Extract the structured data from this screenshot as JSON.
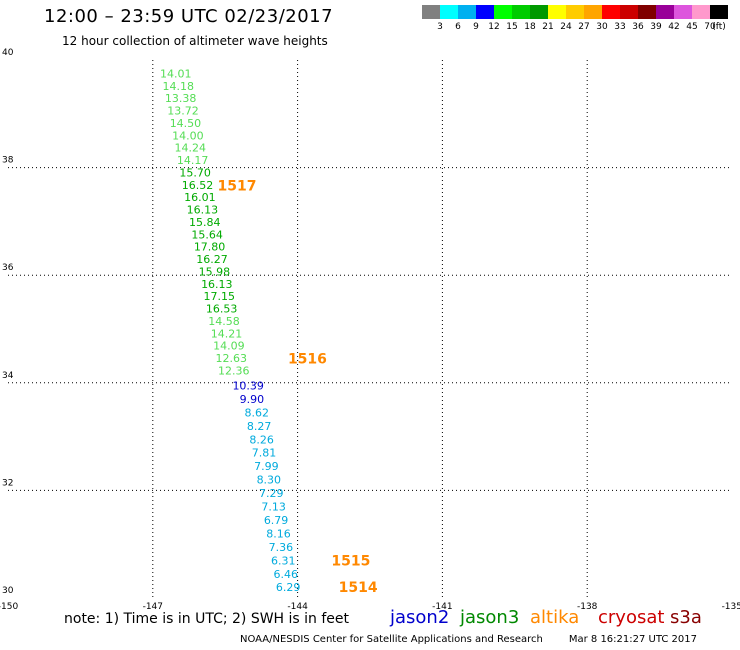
{
  "header": {
    "title": "12:00 – 23:59 UTC 02/23/2017",
    "subtitle": "12 hour collection of altimeter wave heights"
  },
  "colorbar": {
    "colors": [
      "#808080",
      "#00ffff",
      "#00b0f0",
      "#0000ff",
      "#00ff00",
      "#00cc00",
      "#009900",
      "#ffff00",
      "#ffcc00",
      "#ffa500",
      "#ff0000",
      "#cc0000",
      "#800000",
      "#990099",
      "#dd55dd",
      "#ff99cc",
      "#000000"
    ],
    "labels": [
      "3",
      "6",
      "9",
      "12",
      "15",
      "18",
      "21",
      "24",
      "27",
      "30",
      "33",
      "36",
      "39",
      "42",
      "45",
      "70",
      "(ft)"
    ]
  },
  "map": {
    "lon_range": [
      -150,
      -135
    ],
    "lat_range": [
      30,
      40
    ],
    "x_tick_labels": [
      "-150",
      "-147",
      "-144",
      "-141",
      "-138",
      "-135"
    ],
    "y_tick_labels": [
      "30",
      "32",
      "34",
      "36",
      "38",
      "40"
    ],
    "grid": "dotted",
    "satellites": [
      {
        "name": "jason2",
        "color": "#0000cc"
      },
      {
        "name": "jason3",
        "color": "#008800"
      },
      {
        "name": "altika",
        "color": "#ff8800"
      },
      {
        "name": "cryosat",
        "color": "#cc0000"
      },
      {
        "name": "s3a",
        "color": "#880000"
      }
    ],
    "swh_labels": [
      {
        "lon": -146.85,
        "lat": 39.75,
        "text": "14.01",
        "color": "#55dd55"
      },
      {
        "lon": -146.8,
        "lat": 39.52,
        "text": "14.18",
        "color": "#55dd55"
      },
      {
        "lon": -146.75,
        "lat": 39.29,
        "text": "13.38",
        "color": "#55dd55"
      },
      {
        "lon": -146.7,
        "lat": 39.06,
        "text": "13.72",
        "color": "#55dd55"
      },
      {
        "lon": -146.65,
        "lat": 38.83,
        "text": "14.50",
        "color": "#55dd55"
      },
      {
        "lon": -146.6,
        "lat": 38.6,
        "text": "14.00",
        "color": "#55dd55"
      },
      {
        "lon": -146.55,
        "lat": 38.37,
        "text": "14.24",
        "color": "#55dd55"
      },
      {
        "lon": -146.5,
        "lat": 38.14,
        "text": "14.17",
        "color": "#55dd55"
      },
      {
        "lon": -146.45,
        "lat": 37.91,
        "text": "15.70",
        "color": "#00aa00"
      },
      {
        "lon": -146.4,
        "lat": 37.68,
        "text": "16.52",
        "color": "#00aa00"
      },
      {
        "lon": -146.35,
        "lat": 37.45,
        "text": "16.01",
        "color": "#00aa00"
      },
      {
        "lon": -146.3,
        "lat": 37.22,
        "text": "16.13",
        "color": "#00aa00"
      },
      {
        "lon": -146.25,
        "lat": 36.99,
        "text": "15.84",
        "color": "#00aa00"
      },
      {
        "lon": -146.2,
        "lat": 36.76,
        "text": "15.64",
        "color": "#00aa00"
      },
      {
        "lon": -146.15,
        "lat": 36.53,
        "text": "17.80",
        "color": "#00aa00"
      },
      {
        "lon": -146.1,
        "lat": 36.3,
        "text": "16.27",
        "color": "#00aa00"
      },
      {
        "lon": -146.05,
        "lat": 36.07,
        "text": "15.98",
        "color": "#00aa00"
      },
      {
        "lon": -146.0,
        "lat": 35.84,
        "text": "16.13",
        "color": "#00aa00"
      },
      {
        "lon": -145.95,
        "lat": 35.61,
        "text": "17.15",
        "color": "#00aa00"
      },
      {
        "lon": -145.9,
        "lat": 35.38,
        "text": "16.53",
        "color": "#00aa00"
      },
      {
        "lon": -145.85,
        "lat": 35.15,
        "text": "14.58",
        "color": "#55dd55"
      },
      {
        "lon": -145.8,
        "lat": 34.92,
        "text": "14.21",
        "color": "#55dd55"
      },
      {
        "lon": -145.75,
        "lat": 34.69,
        "text": "14.09",
        "color": "#55dd55"
      },
      {
        "lon": -145.7,
        "lat": 34.46,
        "text": "12.63",
        "color": "#55dd55"
      },
      {
        "lon": -145.65,
        "lat": 34.23,
        "text": "12.36",
        "color": "#55dd55"
      },
      {
        "lon": -145.35,
        "lat": 33.95,
        "text": "10.39",
        "color": "#0000cc"
      },
      {
        "lon": -145.2,
        "lat": 33.7,
        "text": "9.90",
        "color": "#0000cc"
      },
      {
        "lon": -145.1,
        "lat": 33.45,
        "text": "8.62",
        "color": "#00aadd"
      },
      {
        "lon": -145.05,
        "lat": 33.2,
        "text": "8.27",
        "color": "#00aadd"
      },
      {
        "lon": -145.0,
        "lat": 32.95,
        "text": "8.26",
        "color": "#00aadd"
      },
      {
        "lon": -144.95,
        "lat": 32.7,
        "text": "7.81",
        "color": "#00aadd"
      },
      {
        "lon": -144.9,
        "lat": 32.45,
        "text": "7.99",
        "color": "#00aadd"
      },
      {
        "lon": -144.85,
        "lat": 32.2,
        "text": "8.30",
        "color": "#00aadd"
      },
      {
        "lon": -144.8,
        "lat": 31.95,
        "text": "7.29",
        "color": "#00aadd"
      },
      {
        "lon": -144.75,
        "lat": 31.7,
        "text": "7.13",
        "color": "#00aadd"
      },
      {
        "lon": -144.7,
        "lat": 31.45,
        "text": "6.79",
        "color": "#00aadd"
      },
      {
        "lon": -144.65,
        "lat": 31.2,
        "text": "8.16",
        "color": "#00aadd"
      },
      {
        "lon": -144.6,
        "lat": 30.95,
        "text": "7.36",
        "color": "#00aadd"
      },
      {
        "lon": -144.55,
        "lat": 30.7,
        "text": "6.31",
        "color": "#00aadd"
      },
      {
        "lon": -144.5,
        "lat": 30.45,
        "text": "6.46",
        "color": "#00aadd"
      },
      {
        "lon": -144.45,
        "lat": 30.2,
        "text": "6.29",
        "color": "#00aadd"
      }
    ],
    "time_labels": [
      {
        "lon": -145.66,
        "lat": 37.67,
        "text": "1517"
      },
      {
        "lon": -144.2,
        "lat": 34.45,
        "text": "1516"
      },
      {
        "lon": -143.3,
        "lat": 30.7,
        "text": "1515"
      },
      {
        "lon": -143.15,
        "lat": 30.2,
        "text": "1514"
      }
    ],
    "time_label_color": "#ff8800"
  },
  "footer": {
    "note": "note: 1) Time is in UTC; 2) SWH is in feet",
    "credit": "NOAA/NESDIS Center for Satellite Applications and Research",
    "timestamp": "Mar  8 16:21:27 UTC 2017"
  }
}
